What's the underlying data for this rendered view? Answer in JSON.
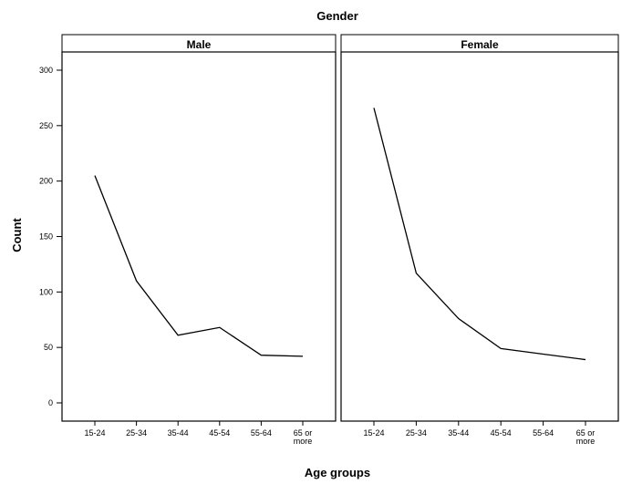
{
  "chart_data": {
    "type": "line",
    "title": "Gender",
    "xlabel": "Age groups",
    "ylabel": "Count",
    "ylim": [
      0,
      300
    ],
    "yticks": [
      0,
      50,
      100,
      150,
      200,
      250,
      300
    ],
    "ytick_labels": [
      "0",
      "50",
      "100",
      "150",
      "200",
      "250",
      "300"
    ],
    "categories": [
      "15-24",
      "25-34",
      "35-44",
      "45-54",
      "55-64",
      "65 or more"
    ],
    "category_lines": [
      [
        "15-24"
      ],
      [
        "25-34"
      ],
      [
        "35-44"
      ],
      [
        "45-54"
      ],
      [
        "55-64"
      ],
      [
        "65 or",
        "more"
      ]
    ],
    "panels": [
      {
        "name": "Male",
        "values": [
          205,
          110,
          61,
          68,
          43,
          42
        ]
      },
      {
        "name": "Female",
        "values": [
          266,
          117,
          76,
          49,
          44,
          39
        ]
      }
    ],
    "grid": false,
    "line_color": "#000000",
    "panel_border_color": "#000000"
  }
}
